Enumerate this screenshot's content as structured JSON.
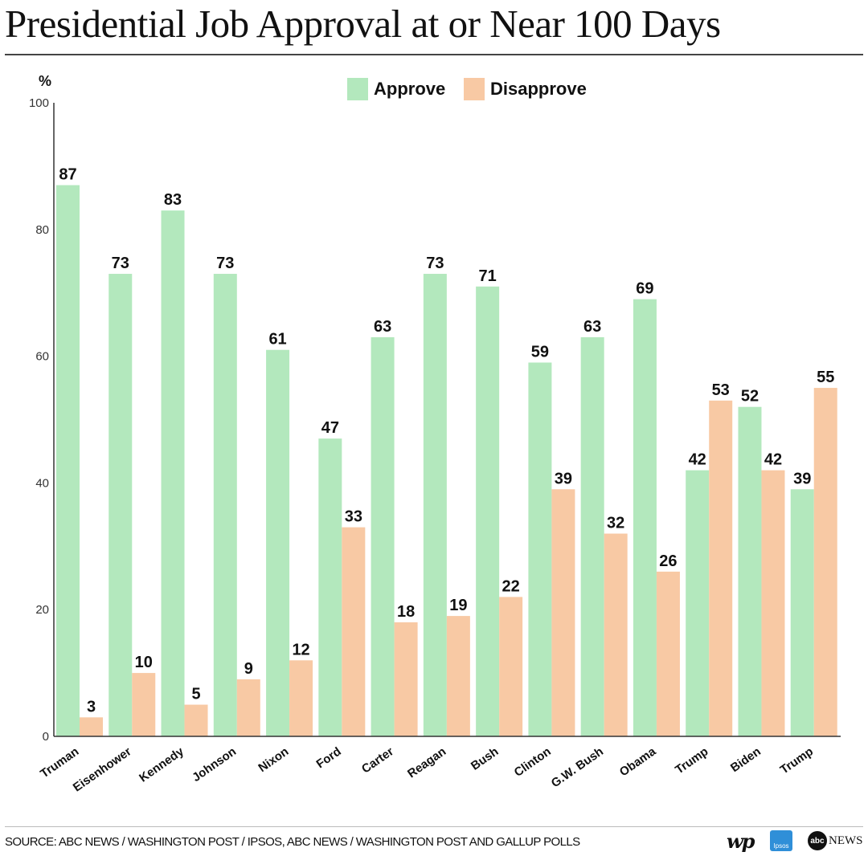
{
  "title": "Presidential Job Approval at or Near 100 Days",
  "source": "SOURCE: ABC NEWS / WASHINGTON POST / IPSOS, ABC NEWS / WASHINGTON POST AND GALLUP POLLS",
  "logos": {
    "wp": "wp",
    "ipsos": "Ipsos",
    "abc": "abc",
    "news": "NEWS"
  },
  "colors": {
    "approve": "#b3e8bd",
    "disapprove": "#f8c9a4",
    "axis": "#333333",
    "text": "#111111"
  },
  "chart_data": {
    "type": "bar",
    "ylabel": "%",
    "ylim": [
      0,
      100
    ],
    "yticks": [
      0,
      20,
      40,
      60,
      80,
      100
    ],
    "grid": false,
    "legend_position": "top-center",
    "categories": [
      "Truman",
      "Eisenhower",
      "Kennedy",
      "Johnson",
      "Nixon",
      "Ford",
      "Carter",
      "Reagan",
      "Bush",
      "Clinton",
      "G.W. Bush",
      "Obama",
      "Trump",
      "Biden",
      "Trump"
    ],
    "series": [
      {
        "name": "Approve",
        "color": "#b3e8bd",
        "values": [
          87,
          73,
          83,
          73,
          61,
          47,
          63,
          73,
          71,
          59,
          63,
          69,
          42,
          52,
          39
        ]
      },
      {
        "name": "Disapprove",
        "color": "#f8c9a4",
        "values": [
          3,
          10,
          5,
          9,
          12,
          33,
          18,
          19,
          22,
          39,
          32,
          26,
          53,
          42,
          55
        ]
      }
    ]
  }
}
